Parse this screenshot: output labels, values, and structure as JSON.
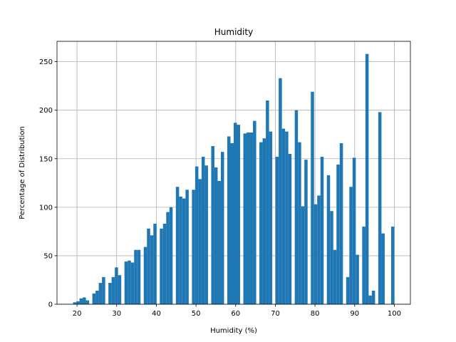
{
  "chart_data": {
    "type": "histogram",
    "title": "Humidity",
    "xlabel": "Humidity (%)",
    "ylabel": "Percentage of Distribution",
    "color": "#1f77b4",
    "grid": true,
    "bins": [
      19,
      19.81,
      20.62,
      21.43,
      22.24,
      23.05,
      23.86,
      24.67,
      25.48,
      26.29,
      27.1,
      27.91,
      28.72,
      29.53,
      30.34,
      31.15,
      31.96,
      32.77,
      33.58,
      34.39,
      35.2,
      36.01,
      36.82,
      37.63,
      38.44,
      39.25,
      40.06,
      40.87,
      41.68,
      42.49,
      43.3,
      44.11,
      44.92,
      45.73,
      46.54,
      47.35,
      48.16,
      48.97,
      49.78,
      50.59,
      51.4,
      52.21,
      53.02,
      53.83,
      54.64,
      55.45,
      56.26,
      57.07,
      57.88,
      58.69,
      59.5,
      60.31,
      61.12,
      61.93,
      62.74,
      63.55,
      64.36,
      65.17,
      65.98,
      66.79,
      67.6,
      68.41,
      69.22,
      70.03,
      70.84,
      71.65,
      72.46,
      73.27,
      74.08,
      74.89,
      75.7,
      76.51,
      77.32,
      78.13,
      78.94,
      79.75,
      80.56,
      81.37,
      82.18,
      82.99,
      83.8,
      84.61,
      85.42,
      86.23,
      87.04,
      87.85,
      88.66,
      89.47,
      90.28,
      91.09,
      91.9,
      92.71,
      93.52,
      94.33,
      95.14,
      95.95,
      96.76,
      97.57,
      98.38,
      99.19,
      100
    ],
    "values": [
      2,
      3,
      6,
      7,
      4,
      0,
      11,
      14,
      22,
      28,
      0,
      22,
      28,
      38,
      30,
      0,
      44,
      45,
      43,
      56,
      56,
      0,
      59,
      78,
      71,
      83,
      0,
      78,
      83,
      95,
      100,
      0,
      121,
      111,
      109,
      118,
      0,
      118,
      142,
      129,
      152,
      143,
      0,
      163,
      141,
      127,
      157,
      0,
      173,
      166,
      187,
      185,
      0,
      176,
      177,
      177,
      189,
      0,
      167,
      171,
      210,
      178,
      0,
      152,
      233,
      181,
      178,
      155,
      0,
      200,
      167,
      101,
      149,
      0,
      219,
      103,
      112,
      152,
      0,
      133,
      96,
      56,
      144,
      166,
      0,
      28,
      121,
      151,
      51,
      0,
      80,
      258,
      9,
      14,
      0,
      198,
      73,
      0,
      0,
      80
    ],
    "xlim": [
      14.95,
      104.05
    ],
    "xticks": [
      20,
      30,
      40,
      50,
      60,
      70,
      80,
      90,
      100
    ],
    "ylim": [
      0,
      271
    ],
    "yticks": [
      0,
      50,
      100,
      150,
      200,
      250
    ]
  }
}
